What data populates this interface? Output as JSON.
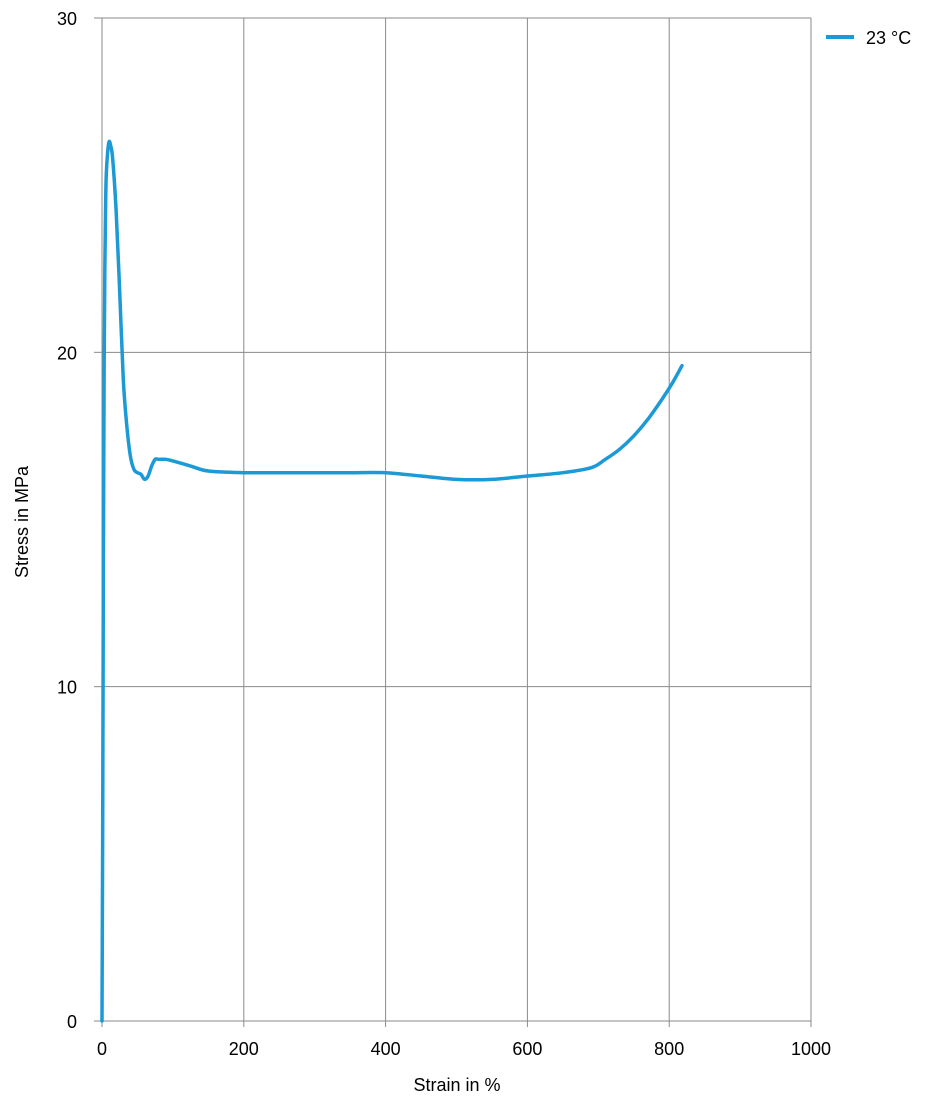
{
  "chart_data": {
    "type": "line",
    "title": "",
    "xlabel": "Strain in  %",
    "ylabel": "Stress in  MPa",
    "xlim": [
      0,
      1000
    ],
    "ylim": [
      0,
      30
    ],
    "xticks": [
      0,
      200,
      400,
      600,
      800,
      1000
    ],
    "yticks": [
      0,
      10,
      20,
      30
    ],
    "grid": true,
    "legend_position": "top-right",
    "series": [
      {
        "name": "23 °C",
        "color": "#1b9ad6",
        "x": [
          0,
          1,
          2,
          3,
          4,
          5,
          6,
          8,
          10,
          12,
          15,
          20,
          25,
          30,
          35,
          40,
          45,
          50,
          55,
          60,
          65,
          70,
          75,
          80,
          90,
          100,
          125,
          150,
          200,
          250,
          300,
          350,
          400,
          450,
          500,
          550,
          600,
          650,
          690,
          710,
          730,
          750,
          770,
          790,
          805,
          818
        ],
        "y": [
          0,
          6,
          14,
          19.5,
          22.5,
          24.3,
          25.3,
          26,
          26.3,
          26.2,
          25.8,
          24.2,
          21.8,
          19.2,
          17.8,
          16.9,
          16.5,
          16.4,
          16.35,
          16.2,
          16.3,
          16.6,
          16.8,
          16.8,
          16.8,
          16.75,
          16.6,
          16.45,
          16.4,
          16.4,
          16.4,
          16.4,
          16.4,
          16.3,
          16.2,
          16.2,
          16.3,
          16.4,
          16.55,
          16.8,
          17.1,
          17.5,
          18.0,
          18.6,
          19.1,
          19.6
        ]
      }
    ]
  }
}
